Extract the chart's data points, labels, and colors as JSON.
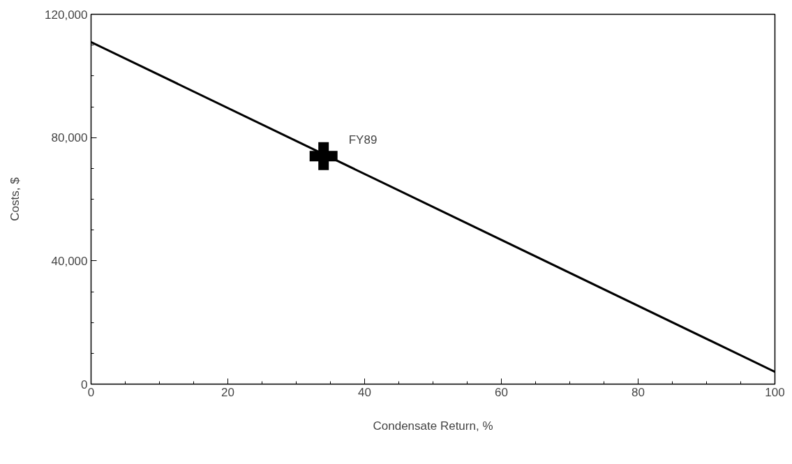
{
  "chart_data": {
    "type": "line",
    "xlabel": "Condensate Return, %",
    "ylabel": "Costs, $",
    "xlim": [
      0,
      100
    ],
    "ylim": [
      0,
      120000
    ],
    "xticks": [
      0,
      20,
      40,
      60,
      80,
      100
    ],
    "yticks": [
      0,
      {
        "value": 40000,
        "label": "40,000"
      },
      {
        "value": 80000,
        "label": "80,000"
      },
      {
        "value": 120000,
        "label": "120,000"
      }
    ],
    "grid": false,
    "series": [
      {
        "color": "#000000",
        "x": [
          0,
          100
        ],
        "values": [
          111000,
          4000
        ]
      },
      {
        "type": "scatter",
        "marker": "cross",
        "color": "#000000",
        "x": [
          34
        ],
        "values": [
          74000
        ]
      }
    ],
    "annotations": [
      {
        "text": "FY89",
        "x": 34,
        "y": 74000
      }
    ]
  }
}
